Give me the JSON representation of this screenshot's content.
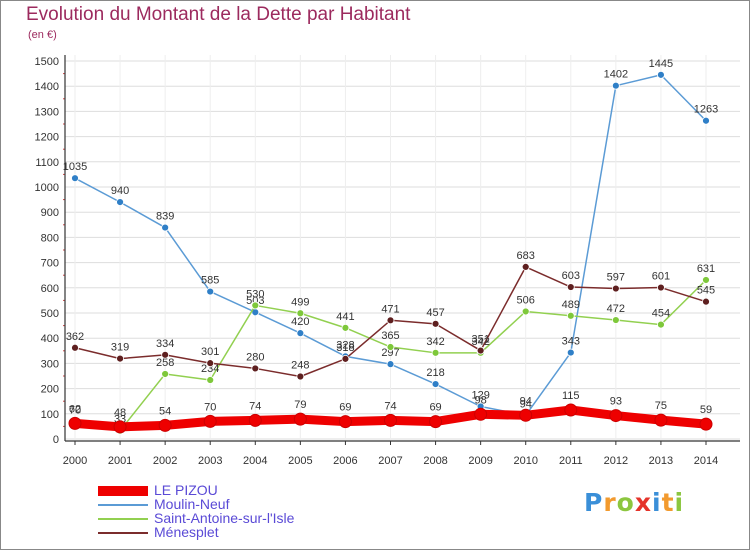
{
  "header": {
    "title": "Evolution du Montant de la Dette par Habitant",
    "unit": "(en €)"
  },
  "logo": {
    "text": "Proxiti"
  },
  "colors": {
    "title": "#9c2a5e",
    "legend_text": "#5a4ad6",
    "axis": "#333333",
    "grid": "#dddddd",
    "background_frame": "#888888"
  },
  "chart_data": {
    "type": "line",
    "title": "Evolution du Montant de la Dette par Habitant",
    "subtitle": "(en €)",
    "xlabel": "",
    "ylabel": "",
    "x": [
      "2000",
      "2001",
      "2002",
      "2003",
      "2004",
      "2005",
      "2006",
      "2007",
      "2008",
      "2009",
      "2010",
      "2011",
      "2012",
      "2013",
      "2014"
    ],
    "ylim": [
      0,
      1500
    ],
    "yticks": [
      0,
      100,
      200,
      300,
      400,
      500,
      600,
      700,
      800,
      900,
      1000,
      1100,
      1200,
      1300,
      1400,
      1500
    ],
    "grid": true,
    "legend_position": "bottom-left",
    "series": [
      {
        "name": "LE PIZOU",
        "color": "#ee0000",
        "marker_color": "#ee0000",
        "bold": true,
        "values": [
          62,
          48,
          54,
          70,
          74,
          79,
          69,
          74,
          69,
          98,
          94,
          115,
          93,
          75,
          59
        ],
        "labels": [
          "62",
          "48",
          "54",
          "70",
          "74",
          "79",
          "69",
          "74",
          "69",
          "98",
          "94",
          "115",
          "93",
          "75",
          "59"
        ]
      },
      {
        "name": "Moulin-Neuf",
        "color": "#5b9bd5",
        "marker_color": "#2f7fc7",
        "bold": false,
        "values": [
          1035,
          940,
          839,
          585,
          503,
          420,
          328,
          297,
          218,
          129,
          94,
          343,
          1402,
          1445,
          1263
        ],
        "labels": [
          "1035",
          "940",
          "839",
          "585",
          "503",
          "420",
          "328",
          "297",
          "218",
          "129",
          "94",
          "343",
          "1402",
          "1445",
          "1263"
        ]
      },
      {
        "name": "Saint-Antoine-sur-l'Isle",
        "color": "#92d050",
        "marker_color": "#7ec83a",
        "bold": false,
        "values": [
          70,
          33,
          258,
          234,
          530,
          499,
          441,
          365,
          342,
          342,
          506,
          489,
          472,
          454,
          631
        ],
        "labels": [
          "70",
          "33",
          "258",
          "234",
          "530",
          "499",
          "441",
          "365",
          "342",
          "342",
          "506",
          "489",
          "472",
          "454",
          "631"
        ]
      },
      {
        "name": "Ménesplet",
        "color": "#7b2c2c",
        "marker_color": "#5e1f1f",
        "bold": false,
        "values": [
          362,
          319,
          334,
          301,
          280,
          248,
          318,
          471,
          457,
          351,
          683,
          603,
          597,
          601,
          545
        ],
        "labels": [
          "362",
          "319",
          "334",
          "301",
          "280",
          "248",
          "318",
          "471",
          "457",
          "351",
          "683",
          "603",
          "597",
          "601",
          "545"
        ]
      }
    ]
  }
}
